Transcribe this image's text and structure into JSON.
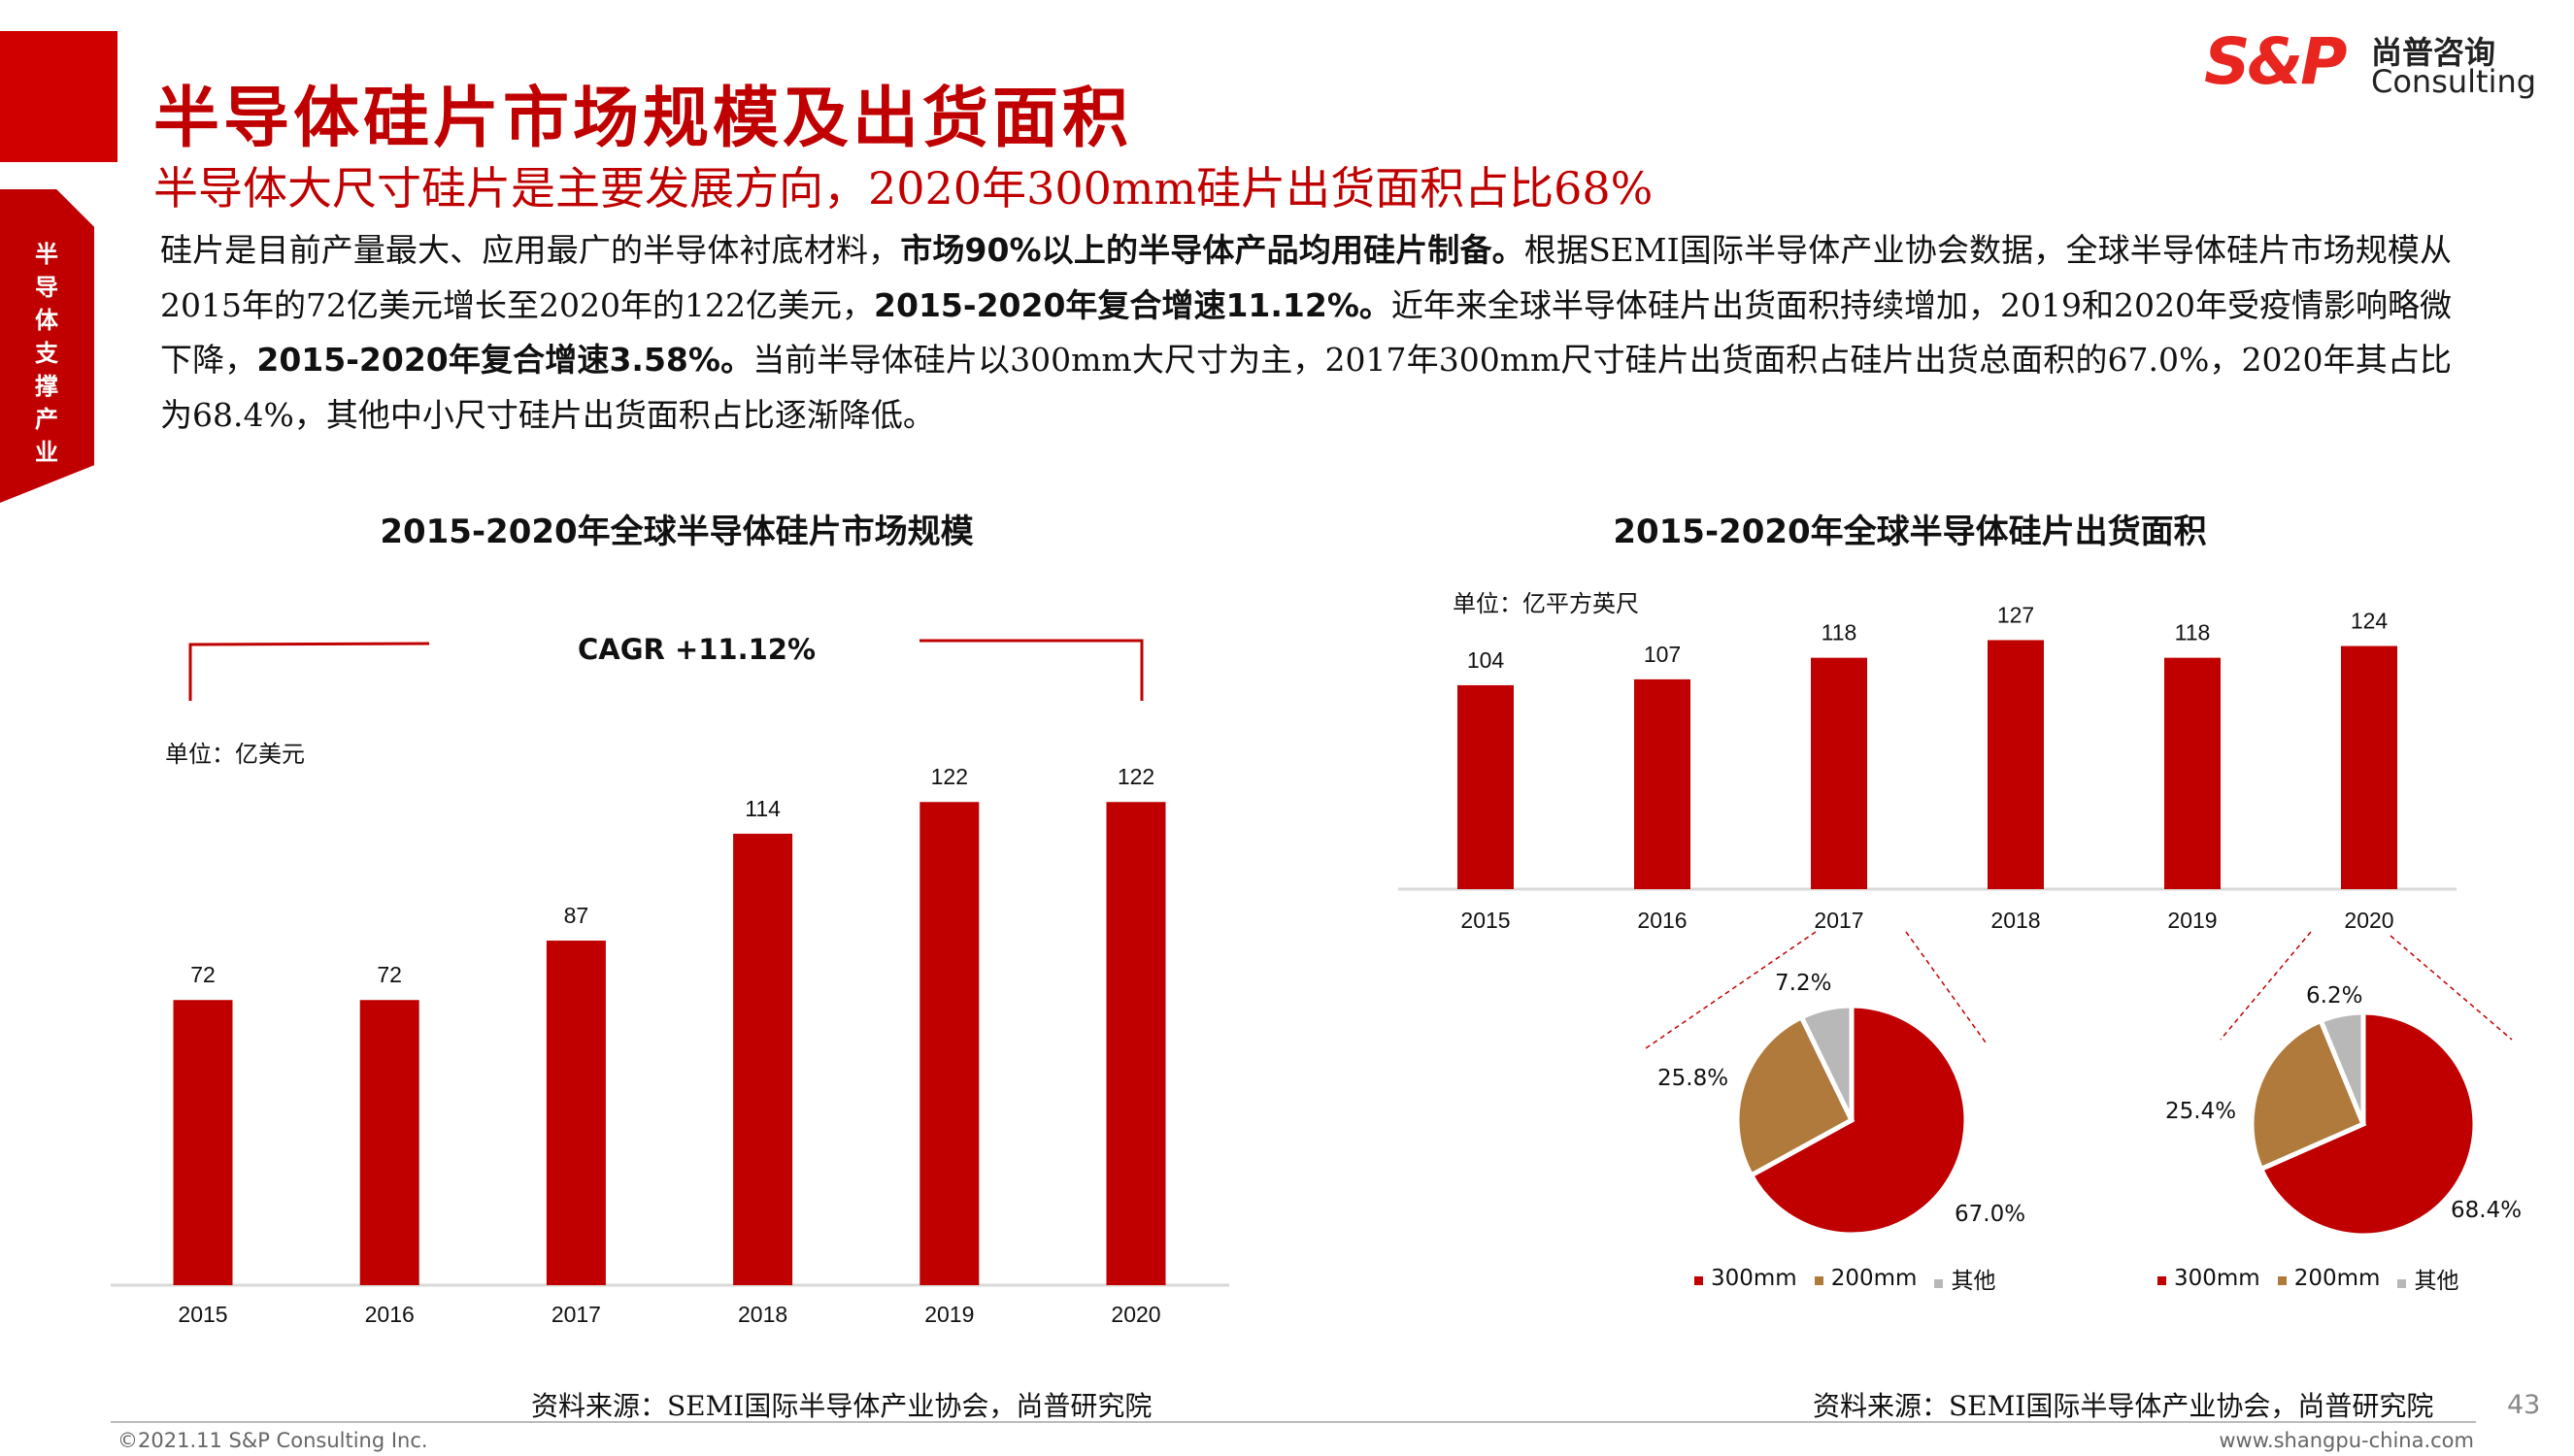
{
  "sidebar_tab": "半导体支撑产业",
  "title": "半导体硅片市场规模及出货面积",
  "subtitle": "半导体大尺寸硅片是主要发展方向，2020年300mm硅片出货面积占比68%",
  "body": [
    {
      "t": "硅片是目前产量最大、应用最广的半导体衬底材料，",
      "b": false
    },
    {
      "t": "市场90%以上的半导体产品均用硅片制备。",
      "b": true
    },
    {
      "t": "根据SEMI国际半导体产业协会数据，全球半导体硅片市场规模从2015年的72亿美元增长至2020年的122亿美元，",
      "b": false
    },
    {
      "t": "2015-2020年复合增速11.12%。",
      "b": true
    },
    {
      "t": "近年来全球半导体硅片出货面积持续增加，2019和2020年受疫情影响略微下降，",
      "b": false
    },
    {
      "t": "2015-2020年复合增速3.58%。",
      "b": true
    },
    {
      "t": "当前半导体硅片以300mm大尺寸为主，2017年300mm尺寸硅片出货面积占硅片出货总面积的67.0%，2020年其占比为68.4%，其他中小尺寸硅片出货面积占比逐渐降低。",
      "b": false
    }
  ],
  "logo": {
    "mark": "S&P",
    "cn": "尚普咨询",
    "en": "Consulting"
  },
  "colors": {
    "accent": "#c00000",
    "brown": "#b07a3c",
    "gray": "#b8b8b8"
  },
  "chart_data": [
    {
      "type": "bar",
      "title": "2015-2020年全球半导体硅片市场规模",
      "unit": "单位：亿美元",
      "annotation": "CAGR +11.12%",
      "categories": [
        "2015",
        "2016",
        "2017",
        "2018",
        "2019",
        "2020"
      ],
      "values": [
        72,
        72,
        87,
        114,
        122,
        122
      ],
      "ylim": [
        0,
        122
      ]
    },
    {
      "type": "bar",
      "title": "2015-2020年全球半导体硅片出货面积",
      "unit": "单位：亿平方英尺",
      "categories": [
        "2015",
        "2016",
        "2017",
        "2018",
        "2019",
        "2020"
      ],
      "values": [
        104,
        107,
        118,
        127,
        118,
        124
      ],
      "ylim": [
        0,
        127
      ]
    },
    {
      "type": "pie",
      "year": "2017",
      "labels": [
        "300mm",
        "200mm",
        "其他"
      ],
      "values": [
        67.0,
        25.8,
        7.2
      ],
      "value_labels": [
        "67.0%",
        "25.8%",
        "7.2%"
      ]
    },
    {
      "type": "pie",
      "year": "2020",
      "labels": [
        "300mm",
        "200mm",
        "其他"
      ],
      "values": [
        68.4,
        25.4,
        6.2
      ],
      "value_labels": [
        "68.4%",
        "25.4%",
        "6.2%"
      ]
    }
  ],
  "sources": {
    "left": "资料来源：SEMI国际半导体产业协会，尚普研究院",
    "right": "资料来源：SEMI国际半导体产业协会，尚普研究院"
  },
  "footer": {
    "copyright": "©2021.11  S&P Consulting Inc.",
    "url": "www.shangpu-china.com",
    "page": "43"
  }
}
